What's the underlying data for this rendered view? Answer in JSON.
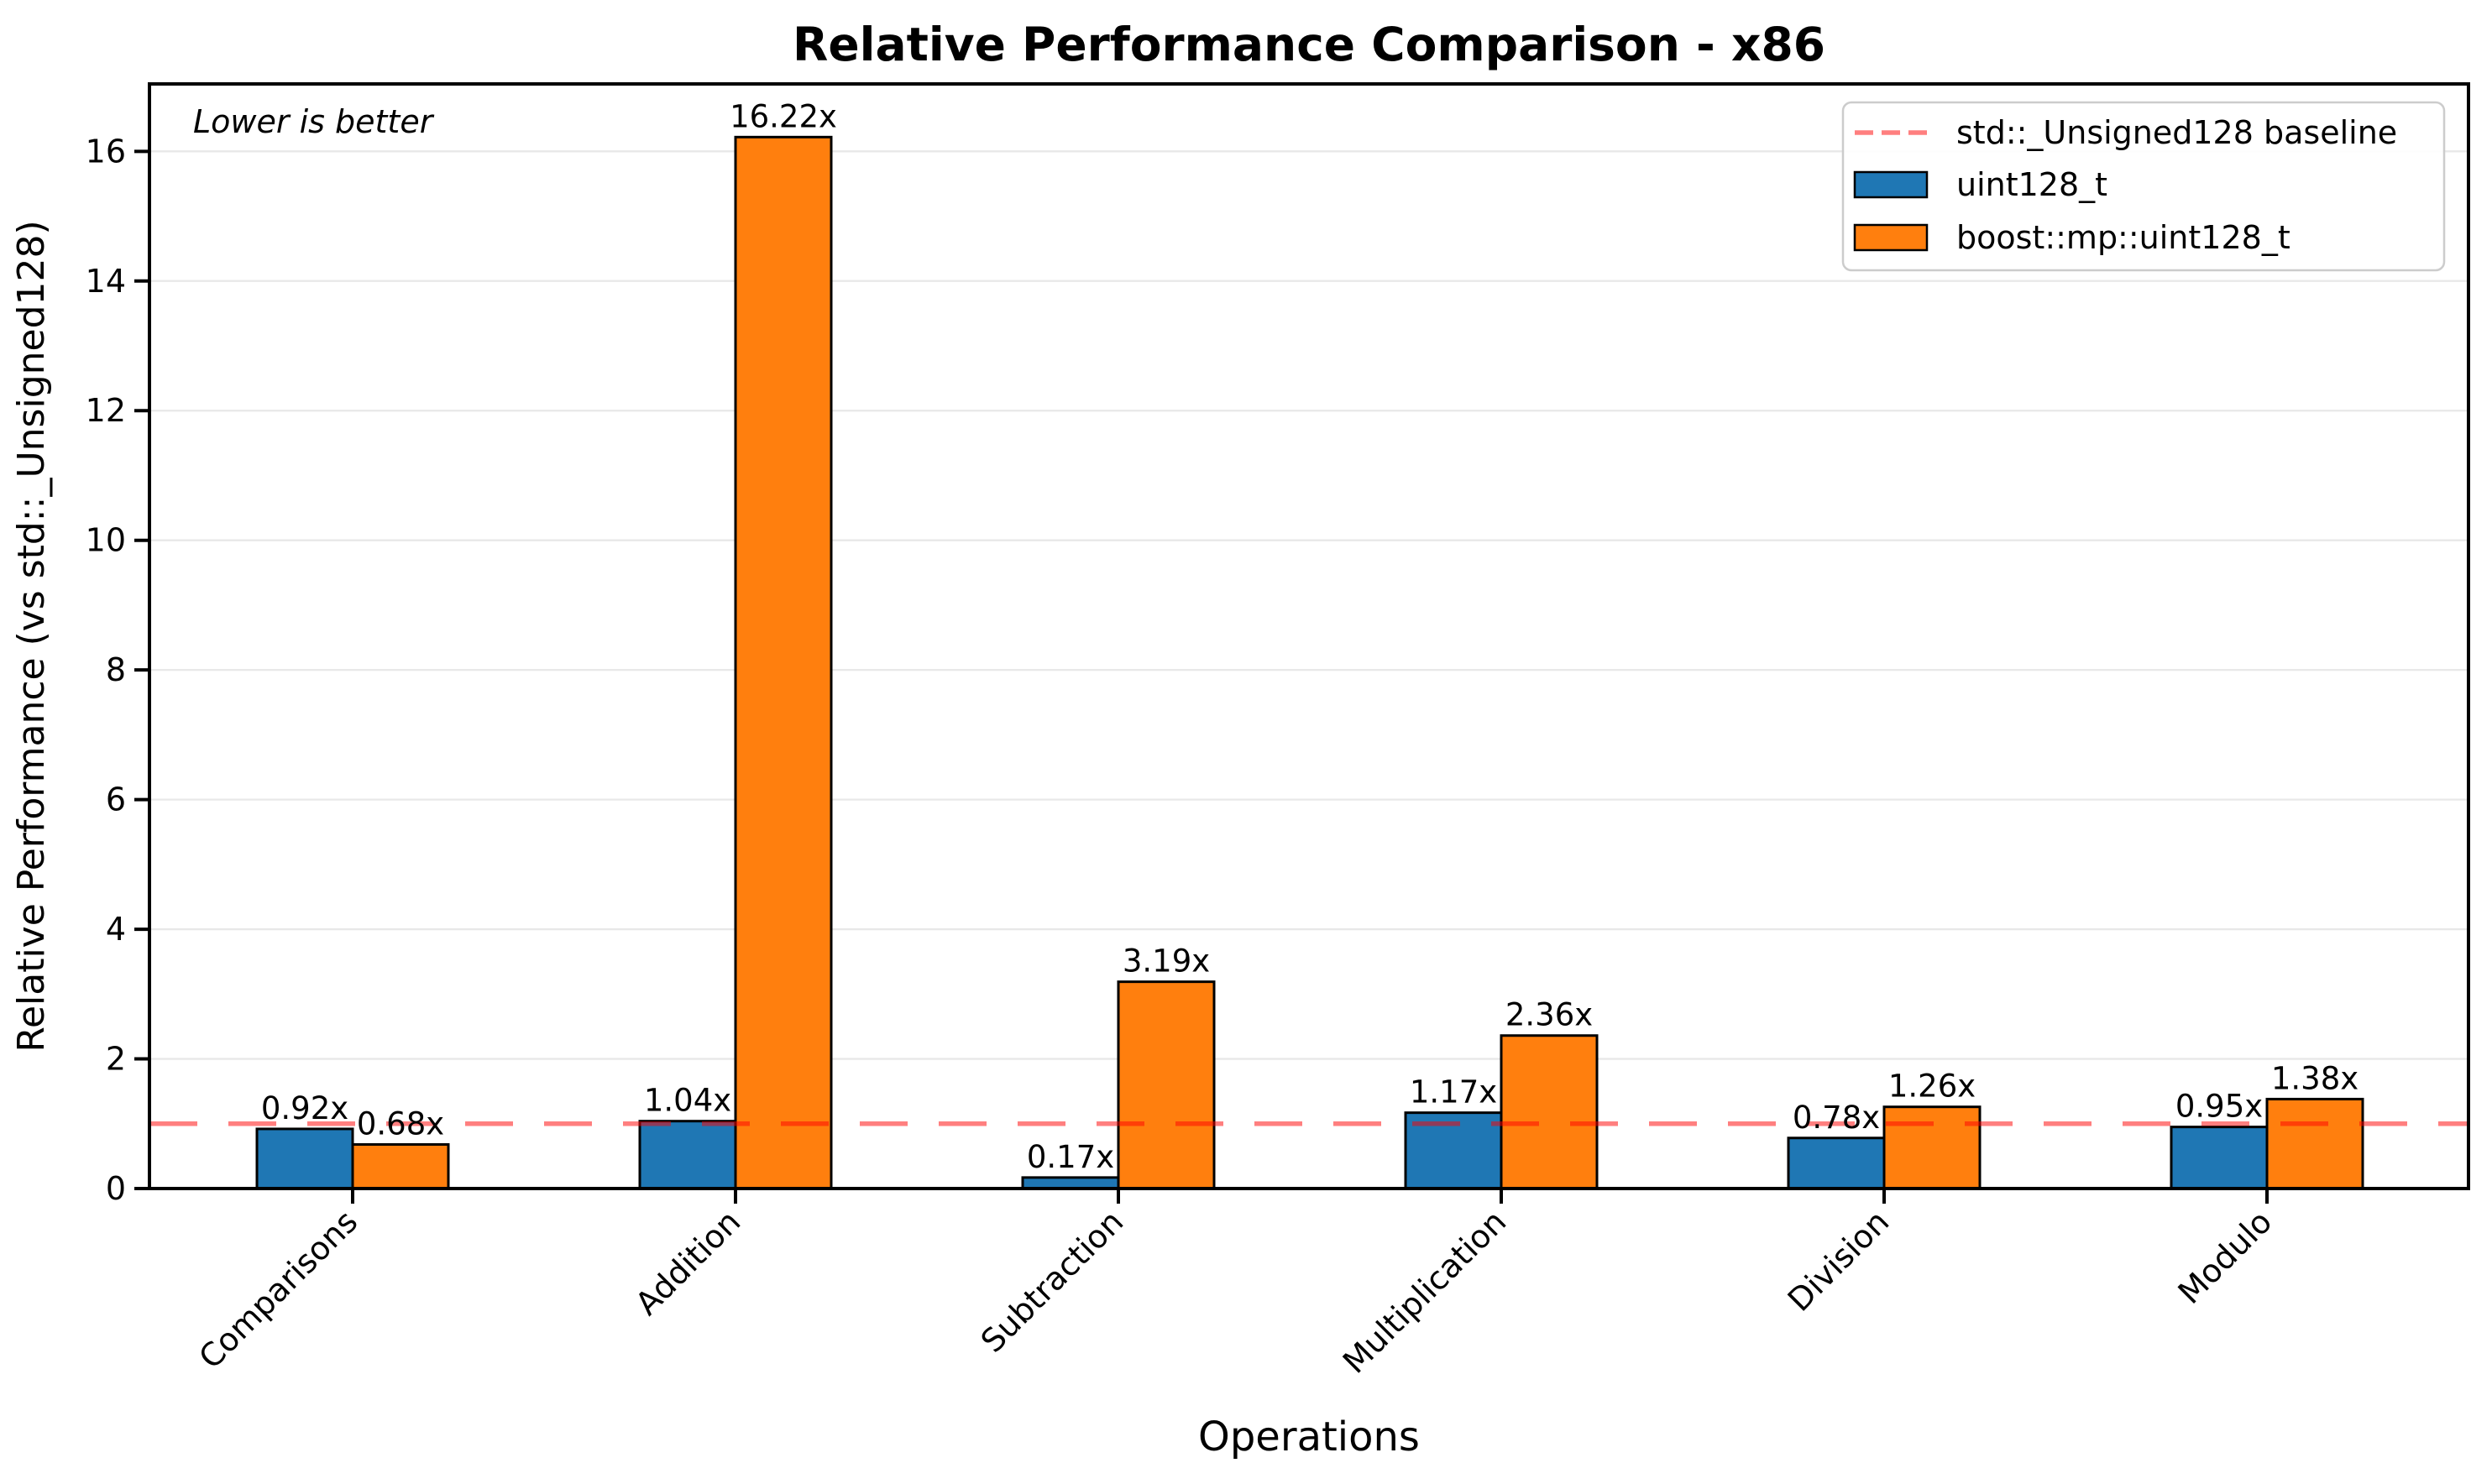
{
  "colors": {
    "series_blue": "#1f77b4",
    "series_orange": "#ff7f0e",
    "baseline_red": "#ff0000",
    "baseline_red_rendered": "#ff8080",
    "gridline_gray": "#e8e8e8",
    "background": "#ffffff",
    "text": "#000000",
    "legend_border": "#cccccc"
  },
  "chart_data": {
    "type": "bar",
    "title": "Relative Performance Comparison - x86",
    "annotation": "Lower is better",
    "xlabel": "Operations",
    "ylabel": "Relative Performance (vs std::_Unsigned128)",
    "categories": [
      "Comparisons",
      "Addition",
      "Subtraction",
      "Multiplication",
      "Division",
      "Modulo"
    ],
    "series": [
      {
        "name": "uint128_t",
        "color": "#1f77b4",
        "values": [
          0.92,
          1.04,
          0.17,
          1.17,
          0.78,
          0.95
        ],
        "labels": [
          "0.92x",
          "1.04x",
          "0.17x",
          "1.17x",
          "0.78x",
          "0.95x"
        ]
      },
      {
        "name": "boost::mp::uint128_t",
        "color": "#ff7f0e",
        "values": [
          0.68,
          16.22,
          3.19,
          2.36,
          1.26,
          1.38
        ],
        "labels": [
          "0.68x",
          "16.22x",
          "3.19x",
          "2.36x",
          "1.26x",
          "1.38x"
        ]
      }
    ],
    "baseline": {
      "label": "std::_Unsigned128 baseline",
      "value": 1.0,
      "style": "dashed"
    },
    "y_ticks": [
      0,
      2,
      4,
      6,
      8,
      10,
      12,
      14,
      16
    ],
    "ylim": [
      0,
      17.04
    ],
    "grid": "horizontal",
    "legend_position": "upper right",
    "x_tick_rotation": 45
  }
}
